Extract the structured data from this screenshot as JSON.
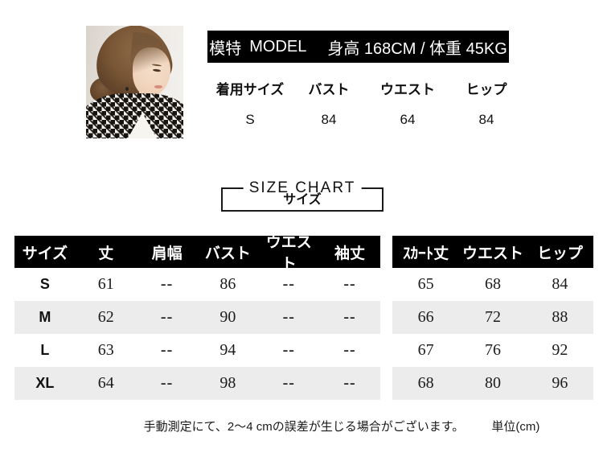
{
  "model": {
    "banner": {
      "label_cn": "模特",
      "label_en": "MODEL",
      "stats": "身高 168CM / 体重 45KG"
    },
    "fit_headers": [
      "着用サイズ",
      "バスト",
      "ウエスト",
      "ヒップ"
    ],
    "fit_values": [
      "S",
      "84",
      "64",
      "84"
    ]
  },
  "title": {
    "en": "SIZE CHART",
    "ja": "サイズ"
  },
  "tables": {
    "garment": {
      "headers": [
        "サイズ",
        "丈",
        "肩幅",
        "バスト",
        "ウエスト",
        "袖丈"
      ],
      "rows": [
        [
          "S",
          "61",
          "--",
          "86",
          "--",
          "--"
        ],
        [
          "M",
          "62",
          "--",
          "90",
          "--",
          "--"
        ],
        [
          "L",
          "63",
          "--",
          "94",
          "--",
          "--"
        ],
        [
          "XL",
          "64",
          "--",
          "98",
          "--",
          "--"
        ]
      ]
    },
    "skirt": {
      "headers": [
        "ｽｶｰﾄ丈",
        "ウエスト",
        "ヒップ"
      ],
      "rows": [
        [
          "65",
          "68",
          "84"
        ],
        [
          "66",
          "72",
          "88"
        ],
        [
          "67",
          "76",
          "92"
        ],
        [
          "68",
          "80",
          "96"
        ]
      ]
    }
  },
  "footer": {
    "note": "手動測定にて、2〜4 cmの誤差が生じる場合がございます。",
    "unit": "単位(cm)"
  }
}
